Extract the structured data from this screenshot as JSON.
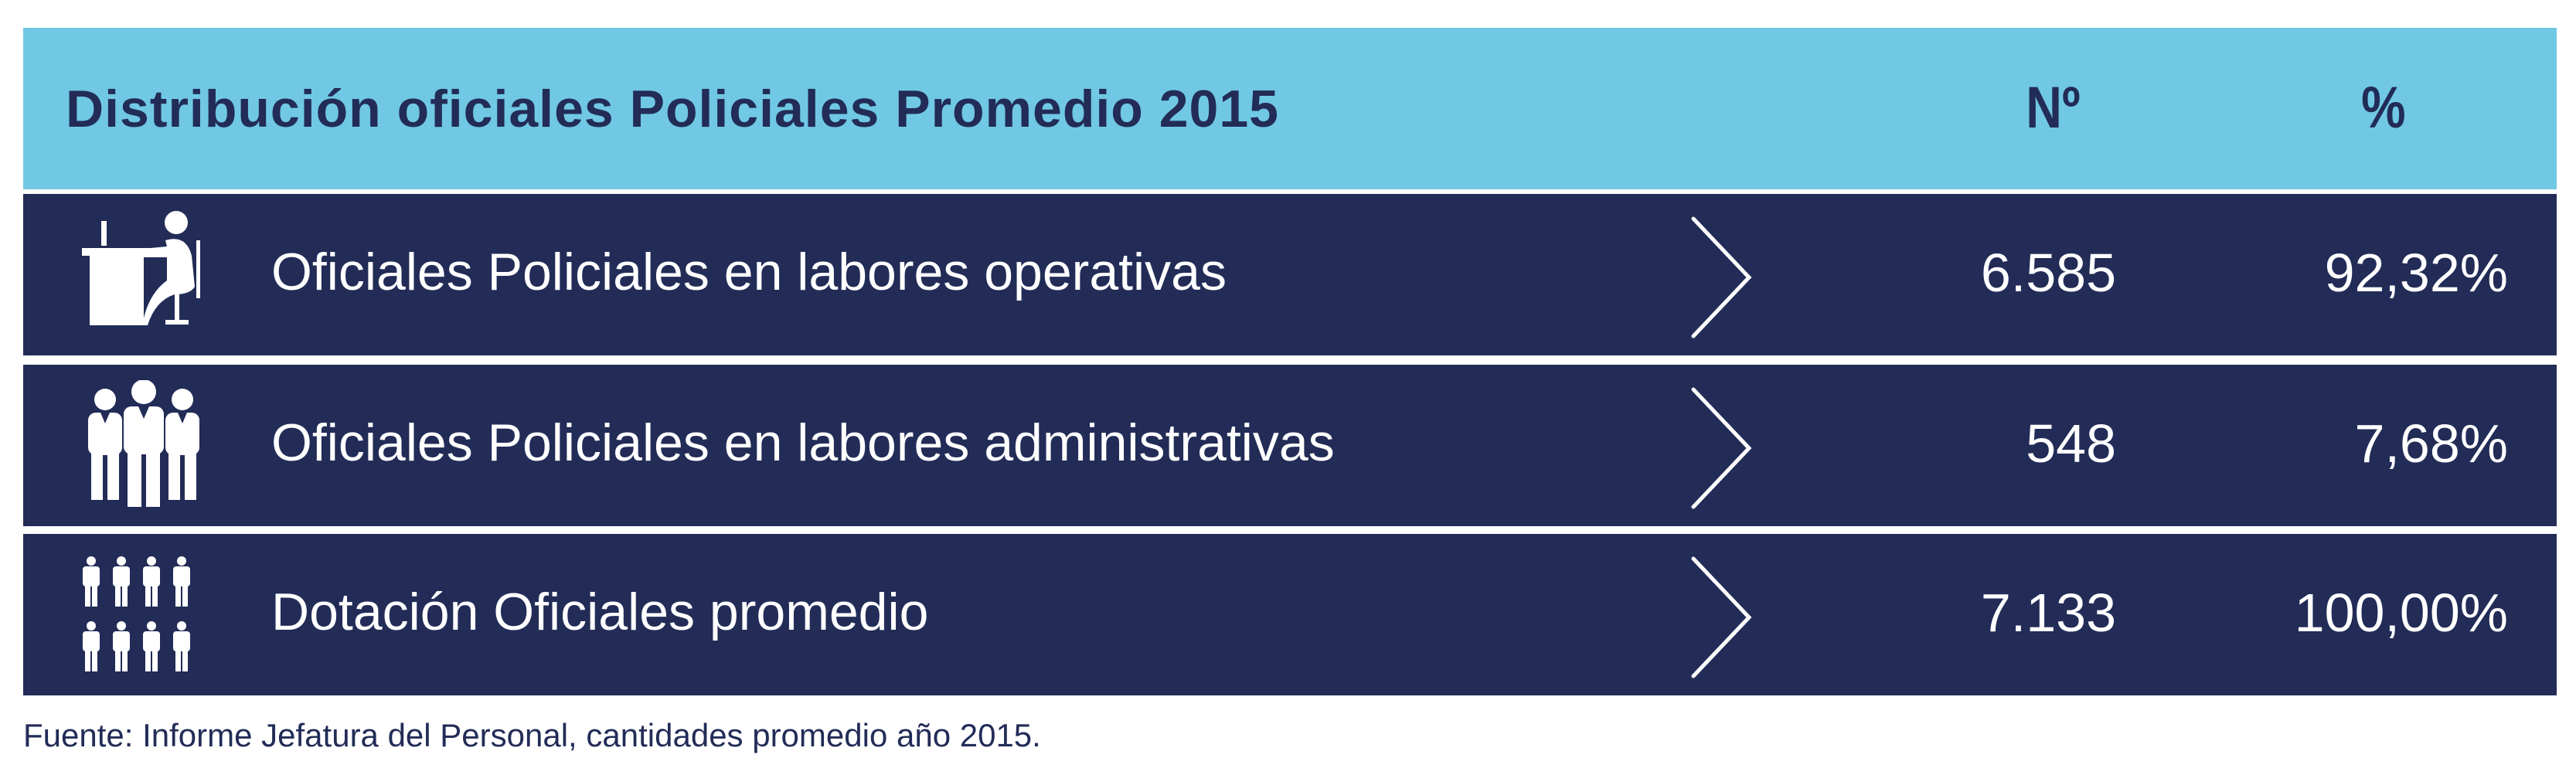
{
  "header": {
    "title": "Distribución oficiales Policiales Promedio 2015",
    "col_number": "Nº",
    "col_percent": "%"
  },
  "rows": [
    {
      "icon": "desk-worker-icon",
      "label": "Oficiales Policiales en labores operativas",
      "number": "6.585",
      "percent": "92,32%"
    },
    {
      "icon": "group-officers-icon",
      "label": "Oficiales Policiales en labores administrativas",
      "number": "548",
      "percent": "7,68%"
    },
    {
      "icon": "crowd-officers-icon",
      "label": "Dotación Oficiales promedio",
      "number": "7.133",
      "percent": "100,00%"
    }
  ],
  "footer": {
    "source": "Fuente: Informe Jefatura del Personal, cantidades promedio año 2015."
  },
  "colors": {
    "header_bg": "#70C8E4",
    "row_bg": "#222C57",
    "text_dark": "#222C57"
  }
}
